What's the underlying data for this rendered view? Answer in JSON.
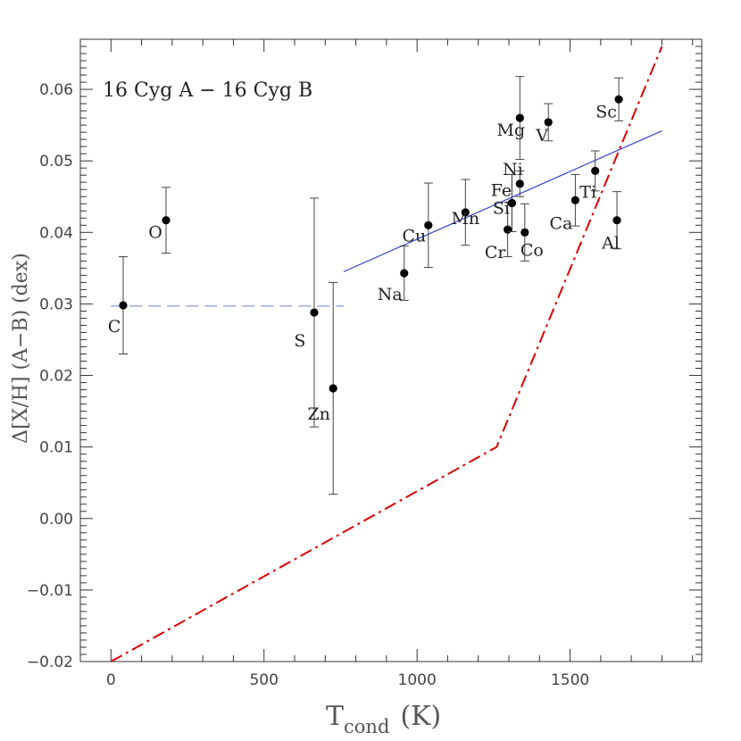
{
  "chart_data": {
    "type": "scatter",
    "title": "",
    "annotation": "16 Cyg A − 16 Cyg B",
    "xlabel_main": "T",
    "xlabel_sub": "cond",
    "xlabel_unit": "(K)",
    "ylabel": "Δ[X/H] (A−B) (dex)",
    "xlim": [
      -100,
      1930
    ],
    "ylim": [
      -0.02,
      0.067
    ],
    "xticks": [
      0,
      500,
      1000,
      1500
    ],
    "xtick_labels": [
      "0",
      "500",
      "1000",
      "1500"
    ],
    "yticks": [
      -0.02,
      -0.01,
      0.0,
      0.01,
      0.02,
      0.03,
      0.04,
      0.05,
      0.06
    ],
    "ytick_labels": [
      "−0.02",
      "−0.01",
      "0.00",
      "0.01",
      "0.02",
      "0.03",
      "0.04",
      "0.05",
      "0.06"
    ],
    "grid": false,
    "points": [
      {
        "el": "C",
        "x": 40,
        "y": 0.0298,
        "err": 0.0068
      },
      {
        "el": "O",
        "x": 180,
        "y": 0.0417,
        "err": 0.0046
      },
      {
        "el": "S",
        "x": 664,
        "y": 0.0288,
        "err": 0.016
      },
      {
        "el": "Zn",
        "x": 726,
        "y": 0.0182,
        "err": 0.0148
      },
      {
        "el": "Na",
        "x": 958,
        "y": 0.0343,
        "err": 0.0038
      },
      {
        "el": "Cu",
        "x": 1037,
        "y": 0.041,
        "err": 0.0059
      },
      {
        "el": "Mn",
        "x": 1158,
        "y": 0.0428,
        "err": 0.0046
      },
      {
        "el": "Cr",
        "x": 1296,
        "y": 0.0404,
        "err": 0.0038
      },
      {
        "el": "Fe",
        "x": 1310,
        "y": 0.0441,
        "err": 0.004
      },
      {
        "el": "Si",
        "x": 1310,
        "y": 0.0441,
        "err": 0.004
      },
      {
        "el": "Ni",
        "x": 1336,
        "y": 0.0468,
        "err": 0.0018
      },
      {
        "el": "Mg",
        "x": 1336,
        "y": 0.056,
        "err": 0.0058
      },
      {
        "el": "Co",
        "x": 1352,
        "y": 0.04,
        "err": 0.004
      },
      {
        "el": "V",
        "x": 1429,
        "y": 0.0554,
        "err": 0.0026
      },
      {
        "el": "Ca",
        "x": 1517,
        "y": 0.0445,
        "err": 0.0036
      },
      {
        "el": "Ti",
        "x": 1582,
        "y": 0.0486,
        "err": 0.0028
      },
      {
        "el": "Al",
        "x": 1653,
        "y": 0.0417,
        "err": 0.004
      },
      {
        "el": "Sc",
        "x": 1659,
        "y": 0.0586,
        "err": 0.003
      }
    ],
    "fit_lines": [
      {
        "style": "dashed",
        "color": "#7f8fe0",
        "x": [
          0,
          760
        ],
        "y": [
          0.0297,
          0.0297
        ]
      },
      {
        "style": "solid",
        "color": "#3340d0",
        "x": [
          760,
          1800
        ],
        "y": [
          0.0345,
          0.0542
        ]
      },
      {
        "style": "dash-dot",
        "color": "#dd0000",
        "x": [
          0,
          1260,
          1800
        ],
        "y": [
          -0.02,
          0.01,
          0.066
        ]
      }
    ]
  }
}
